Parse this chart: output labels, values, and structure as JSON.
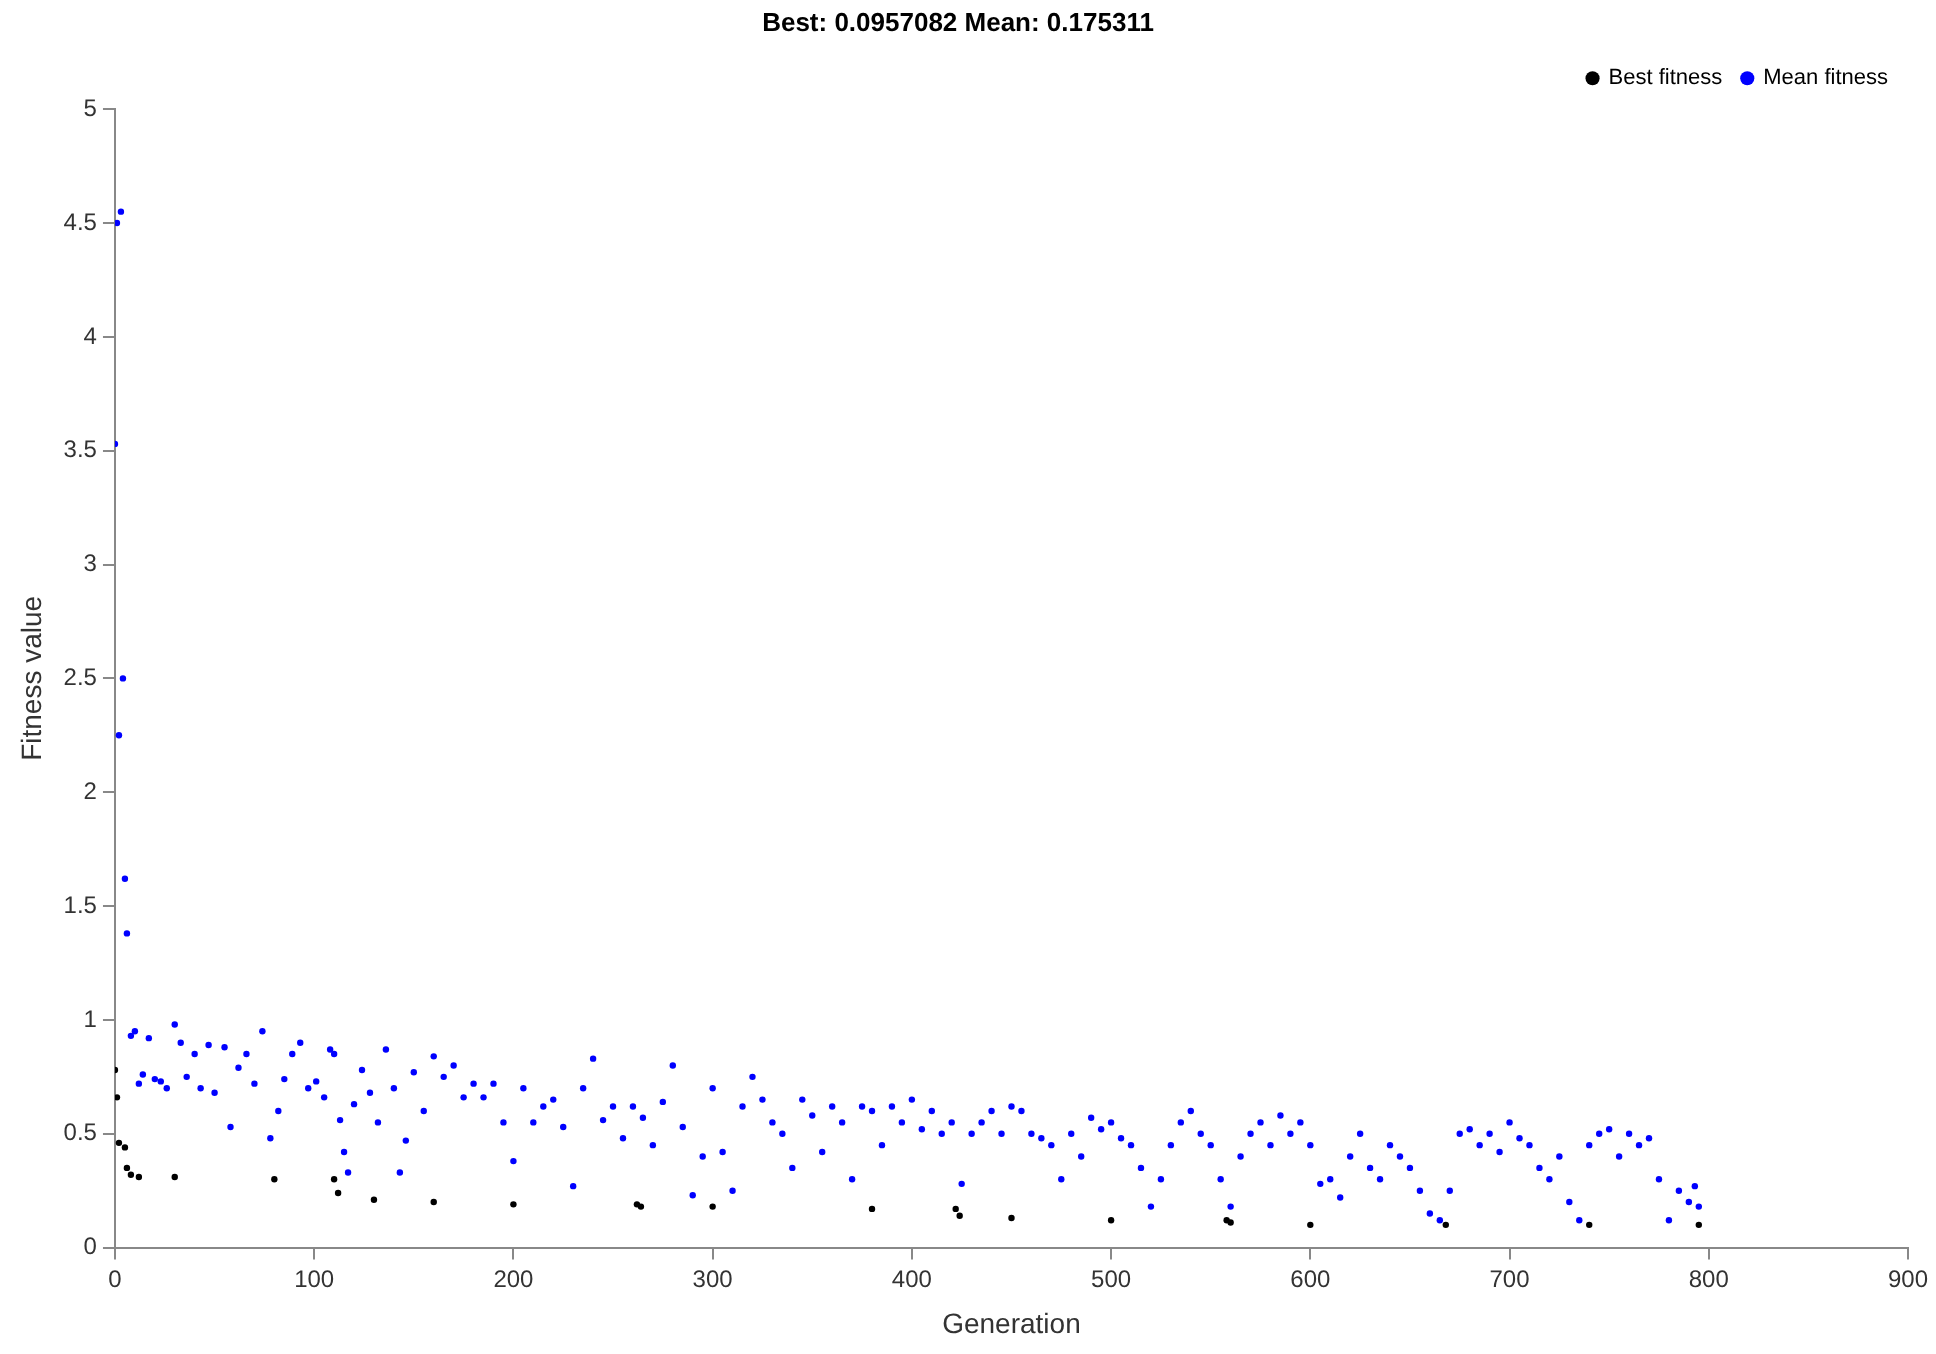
{
  "chart_data": {
    "type": "scatter",
    "title": "Best: 0.0957082 Mean: 0.175311",
    "xlabel": "Generation",
    "ylabel": "Fitness value",
    "xlim": [
      0,
      900
    ],
    "xticks": [
      0,
      100,
      200,
      300,
      400,
      500,
      600,
      700,
      800,
      900
    ],
    "ylim": [
      0,
      5
    ],
    "yticks": [
      0,
      0.5,
      1,
      1.5,
      2,
      2.5,
      3,
      3.5,
      4,
      4.5,
      5
    ],
    "grid": false,
    "legend": "top right",
    "marker": "circle",
    "series": [
      {
        "name": "Best fitness",
        "color": "#000000",
        "x": [
          0,
          1,
          2,
          5,
          6,
          8,
          12,
          30,
          80,
          110,
          112,
          130,
          160,
          200,
          262,
          264,
          300,
          380,
          422,
          424,
          450,
          500,
          558,
          560,
          600,
          668,
          740,
          795
        ],
        "values": [
          0.78,
          0.66,
          0.46,
          0.44,
          0.35,
          0.32,
          0.31,
          0.31,
          0.3,
          0.3,
          0.24,
          0.21,
          0.2,
          0.19,
          0.19,
          0.18,
          0.18,
          0.17,
          0.17,
          0.14,
          0.13,
          0.12,
          0.12,
          0.11,
          0.1,
          0.1,
          0.1,
          0.1
        ]
      },
      {
        "name": "Mean fitness",
        "color": "#0000ff",
        "x": [
          0,
          1,
          2,
          3,
          4,
          5,
          6,
          8,
          10,
          12,
          14,
          17,
          20,
          23,
          26,
          30,
          33,
          36,
          40,
          43,
          47,
          50,
          55,
          58,
          62,
          66,
          70,
          74,
          78,
          82,
          85,
          89,
          93,
          97,
          101,
          105,
          108,
          110,
          113,
          115,
          117,
          120,
          124,
          128,
          132,
          136,
          140,
          143,
          146,
          150,
          155,
          160,
          165,
          170,
          175,
          180,
          185,
          190,
          195,
          200,
          205,
          210,
          215,
          220,
          225,
          230,
          235,
          240,
          245,
          250,
          255,
          260,
          265,
          270,
          275,
          280,
          285,
          290,
          295,
          300,
          305,
          310,
          315,
          320,
          325,
          330,
          335,
          340,
          345,
          350,
          355,
          360,
          365,
          370,
          375,
          380,
          385,
          390,
          395,
          400,
          405,
          410,
          415,
          420,
          425,
          430,
          435,
          440,
          445,
          450,
          455,
          460,
          465,
          470,
          475,
          480,
          485,
          490,
          495,
          500,
          505,
          510,
          515,
          520,
          525,
          530,
          535,
          540,
          545,
          550,
          555,
          560,
          565,
          570,
          575,
          580,
          585,
          590,
          595,
          600,
          605,
          610,
          615,
          620,
          625,
          630,
          635,
          640,
          645,
          650,
          655,
          660,
          665,
          670,
          675,
          680,
          685,
          690,
          695,
          700,
          705,
          710,
          715,
          720,
          725,
          730,
          735,
          740,
          745,
          750,
          755,
          760,
          765,
          770,
          775,
          780,
          785,
          790,
          793,
          795
        ],
        "values": [
          3.53,
          4.5,
          2.25,
          4.55,
          2.5,
          1.62,
          1.38,
          0.93,
          0.95,
          0.72,
          0.76,
          0.92,
          0.74,
          0.73,
          0.7,
          0.98,
          0.9,
          0.75,
          0.85,
          0.7,
          0.89,
          0.68,
          0.88,
          0.53,
          0.79,
          0.85,
          0.72,
          0.95,
          0.48,
          0.6,
          0.74,
          0.85,
          0.9,
          0.7,
          0.73,
          0.66,
          0.87,
          0.85,
          0.56,
          0.42,
          0.33,
          0.63,
          0.78,
          0.68,
          0.55,
          0.87,
          0.7,
          0.33,
          0.47,
          0.77,
          0.6,
          0.84,
          0.75,
          0.8,
          0.66,
          0.72,
          0.66,
          0.72,
          0.55,
          0.38,
          0.7,
          0.55,
          0.62,
          0.65,
          0.53,
          0.27,
          0.7,
          0.83,
          0.56,
          0.62,
          0.48,
          0.62,
          0.57,
          0.45,
          0.64,
          0.8,
          0.53,
          0.23,
          0.4,
          0.7,
          0.42,
          0.25,
          0.62,
          0.75,
          0.65,
          0.55,
          0.5,
          0.35,
          0.65,
          0.58,
          0.42,
          0.62,
          0.55,
          0.3,
          0.62,
          0.6,
          0.45,
          0.62,
          0.55,
          0.65,
          0.52,
          0.6,
          0.5,
          0.55,
          0.28,
          0.5,
          0.55,
          0.6,
          0.5,
          0.62,
          0.6,
          0.5,
          0.48,
          0.45,
          0.3,
          0.5,
          0.4,
          0.57,
          0.52,
          0.55,
          0.48,
          0.45,
          0.35,
          0.18,
          0.3,
          0.45,
          0.55,
          0.6,
          0.5,
          0.45,
          0.3,
          0.18,
          0.4,
          0.5,
          0.55,
          0.45,
          0.58,
          0.5,
          0.55,
          0.45,
          0.28,
          0.3,
          0.22,
          0.4,
          0.5,
          0.35,
          0.3,
          0.45,
          0.4,
          0.35,
          0.25,
          0.15,
          0.12,
          0.25,
          0.5,
          0.52,
          0.45,
          0.5,
          0.42,
          0.55,
          0.48,
          0.45,
          0.35,
          0.3,
          0.4,
          0.2,
          0.12,
          0.45,
          0.5,
          0.52,
          0.4,
          0.5,
          0.45,
          0.48,
          0.3,
          0.12,
          0.25,
          0.2,
          0.27,
          0.18
        ]
      }
    ]
  }
}
